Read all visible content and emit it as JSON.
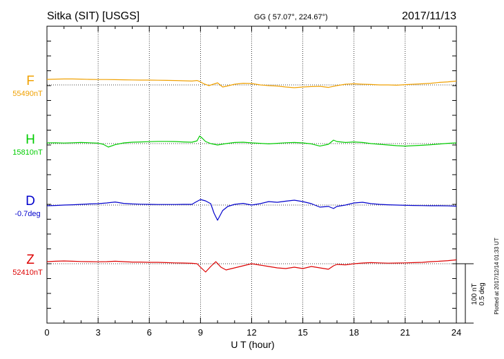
{
  "header": {
    "station": "Sitka (SIT)  [USGS]",
    "coords": "GG ( 57.07°, 224.67°)",
    "date": "2017/11/13"
  },
  "footer": {
    "plotted": "Plotted at 2017/12/14 01:33 UT"
  },
  "chart_data": {
    "type": "line",
    "title": "Sitka (SIT)  [USGS]",
    "xlabel": "U T (hour)",
    "ylabel": "",
    "xlim": [
      0,
      24
    ],
    "x_ticks": [
      "0",
      "3",
      "6",
      "9",
      "12",
      "15",
      "18",
      "21",
      "24"
    ],
    "grid": true,
    "scale_bar": {
      "nt": "100 nT",
      "deg": "0.5 deg"
    },
    "series": [
      {
        "name": "F",
        "baseline_label": "55490nT",
        "color": "#f0a000",
        "x": [
          0,
          0.5,
          1,
          1.5,
          2,
          2.5,
          3,
          3.5,
          4,
          4.5,
          5,
          5.5,
          6,
          6.5,
          7,
          7.5,
          8,
          8.5,
          8.8,
          9,
          9.2,
          9.5,
          10,
          10.3,
          10.5,
          11,
          11.5,
          12,
          12.5,
          13,
          13.5,
          14,
          14.5,
          15,
          15.5,
          16,
          16.5,
          17,
          17.5,
          18,
          18.5,
          19,
          19.5,
          20,
          20.5,
          21,
          21.5,
          22,
          22.5,
          23,
          23.5,
          24
        ],
        "y": [
          40,
          42,
          43,
          43,
          42,
          40,
          39,
          39,
          38,
          37,
          36,
          35,
          35,
          34,
          33,
          32,
          30,
          28,
          32,
          22,
          8,
          -5,
          15,
          -15,
          -10,
          5,
          12,
          10,
          0,
          -5,
          -8,
          -15,
          -20,
          -15,
          -12,
          -10,
          -18,
          -5,
          5,
          8,
          5,
          3,
          0,
          0,
          -2,
          2,
          5,
          8,
          12,
          18,
          22,
          28
        ]
      },
      {
        "name": "H",
        "baseline_label": "15810nT",
        "color": "#00cc00",
        "x": [
          0,
          0.5,
          1,
          1.5,
          2,
          2.5,
          3,
          3.3,
          3.6,
          4,
          4.5,
          5,
          5.5,
          6,
          6.5,
          7,
          7.5,
          8,
          8.5,
          8.8,
          8.95,
          9.1,
          9.3,
          9.6,
          10,
          10.5,
          11,
          11.5,
          12,
          12.5,
          13,
          13.5,
          14,
          14.5,
          15,
          15.5,
          16,
          16.5,
          16.8,
          17,
          17.5,
          18,
          18.5,
          19,
          19.5,
          20,
          20.5,
          21,
          21.5,
          22,
          22.5,
          23,
          23.5,
          24
        ],
        "y": [
          5,
          6,
          4,
          6,
          8,
          6,
          3,
          -5,
          -25,
          -8,
          5,
          10,
          12,
          14,
          16,
          16,
          15,
          12,
          10,
          20,
          55,
          40,
          15,
          0,
          -10,
          0,
          8,
          10,
          5,
          2,
          -2,
          2,
          6,
          8,
          5,
          -2,
          -18,
          -5,
          25,
          15,
          8,
          12,
          8,
          0,
          -5,
          -10,
          -15,
          -18,
          -15,
          -12,
          -8,
          -3,
          2,
          5
        ]
      },
      {
        "name": "D",
        "baseline_label": "-0.7deg",
        "color": "#0000cc",
        "x": [
          0,
          0.5,
          1,
          1.5,
          2,
          2.5,
          3,
          3.5,
          4,
          4.5,
          5,
          5.5,
          6,
          6.5,
          7,
          7.5,
          8,
          8.5,
          8.7,
          9,
          9.3,
          9.6,
          9.8,
          10,
          10.3,
          10.6,
          11,
          11.5,
          12,
          12.5,
          13,
          13.5,
          14,
          14.5,
          15,
          15.5,
          16,
          16.5,
          16.8,
          17,
          17.5,
          18,
          18.5,
          19,
          19.5,
          20,
          20.5,
          21,
          21.5,
          22,
          22.5,
          23,
          23.5,
          24
        ],
        "y": [
          -5,
          -3,
          0,
          2,
          5,
          8,
          10,
          15,
          22,
          12,
          8,
          6,
          5,
          4,
          4,
          4,
          5,
          5,
          20,
          40,
          30,
          10,
          -60,
          -110,
          -40,
          -10,
          5,
          12,
          0,
          10,
          25,
          20,
          28,
          35,
          25,
          10,
          -15,
          -10,
          -25,
          -10,
          0,
          15,
          20,
          10,
          5,
          2,
          0,
          -2,
          -3,
          -4,
          -5,
          -5,
          -6,
          -8
        ]
      },
      {
        "name": "Z",
        "baseline_label": "52410nT",
        "color": "#dd0000",
        "x": [
          0,
          0.5,
          1,
          1.5,
          2,
          2.5,
          3,
          3.5,
          4,
          4.5,
          5,
          5.5,
          6,
          6.5,
          7,
          7.5,
          8,
          8.5,
          8.8,
          9,
          9.3,
          9.6,
          9.9,
          10.2,
          10.5,
          11,
          11.5,
          12,
          12.5,
          13,
          13.5,
          14,
          14.5,
          15,
          15.5,
          16,
          16.5,
          16.8,
          17,
          17.5,
          18,
          18.5,
          19,
          19.5,
          20,
          20.5,
          21,
          21.5,
          22,
          22.5,
          23,
          23.5,
          24
        ],
        "y": [
          15,
          18,
          20,
          18,
          16,
          15,
          14,
          15,
          18,
          15,
          12,
          12,
          10,
          10,
          8,
          6,
          5,
          3,
          0,
          -25,
          -60,
          -20,
          15,
          -25,
          -45,
          -30,
          -15,
          0,
          -10,
          -20,
          -30,
          -35,
          -25,
          -35,
          -20,
          -30,
          -40,
          -15,
          -5,
          -8,
          0,
          5,
          8,
          6,
          4,
          5,
          6,
          8,
          10,
          15,
          18,
          22,
          28
        ]
      }
    ],
    "series_baseline_y": [
      123,
      208,
      297,
      382
    ]
  }
}
